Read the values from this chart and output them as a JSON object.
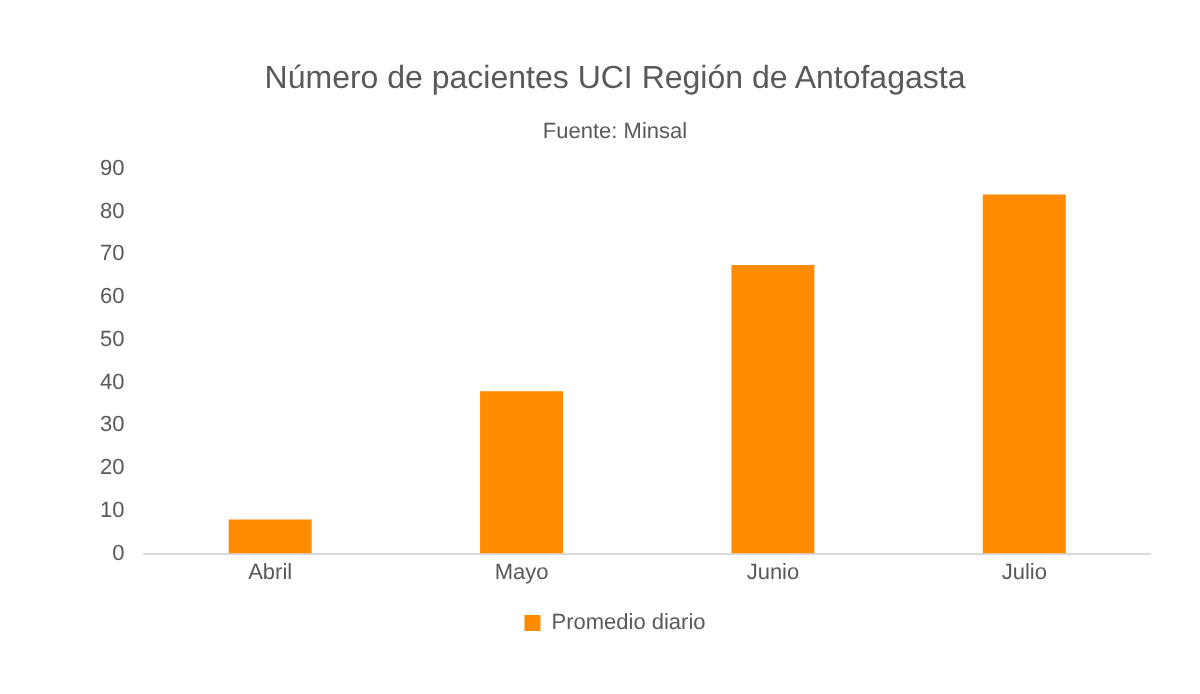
{
  "chart_data": {
    "type": "bar",
    "title": "Número de pacientes UCI Región de Antofagasta",
    "subtitle": "Fuente: Minsal",
    "categories": [
      "Abril",
      "Mayo",
      "Junio",
      "Julio"
    ],
    "series": [
      {
        "name": "Promedio diario",
        "color": "#ff8c00",
        "values": [
          8,
          38,
          67.5,
          84
        ]
      }
    ],
    "ylim": [
      0,
      90
    ],
    "yticks": [
      0,
      10,
      20,
      30,
      40,
      50,
      60,
      70,
      80,
      90
    ],
    "grid": false,
    "legend": "bottom"
  }
}
